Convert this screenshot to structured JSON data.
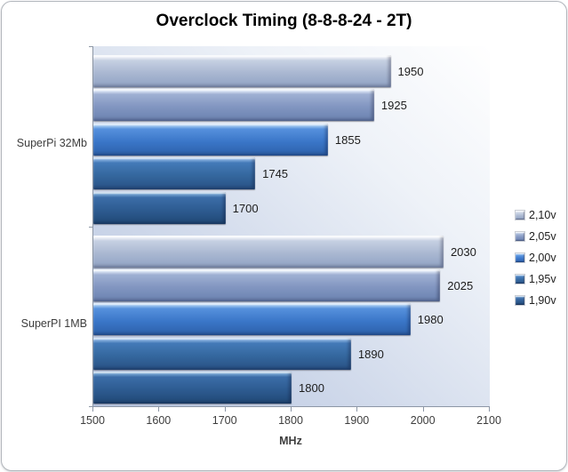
{
  "chart_data": {
    "type": "bar",
    "orientation": "horizontal",
    "title": "Overclock Timing (8-8-8-24 - 2T)",
    "categories": [
      "SuperPi 32Mb",
      "SuperPI 1MB"
    ],
    "series": [
      {
        "name": "2,10v",
        "values": [
          1950,
          2030
        ]
      },
      {
        "name": "2,05v",
        "values": [
          1925,
          2025
        ]
      },
      {
        "name": "2,00v",
        "values": [
          1855,
          1980
        ]
      },
      {
        "name": "1,95v",
        "values": [
          1745,
          1890
        ]
      },
      {
        "name": "1,90v",
        "values": [
          1700,
          1800
        ]
      }
    ],
    "data_labels": [
      [
        1950,
        1925,
        1855,
        1745,
        1700
      ],
      [
        2030,
        2025,
        1980,
        1890,
        1800
      ]
    ],
    "xlabel": "MHz",
    "xlim": [
      1500,
      2100
    ],
    "xticks": [
      1500,
      1600,
      1700,
      1800,
      1900,
      2000,
      2100
    ],
    "legend_position": "right",
    "grid": false
  },
  "colors": {
    "series_gradients": {
      "2,10v": [
        "#eff2f8",
        "#c6d0e2",
        "#aab8d2",
        "#90a2c3"
      ],
      "2,05v": [
        "#dde7f6",
        "#9fb0d3",
        "#8296c1",
        "#6a82b0"
      ],
      "2,00v": [
        "#a9cdf2",
        "#5691dd",
        "#3b77c9",
        "#2c60a9"
      ],
      "1,95v": [
        "#8cb4e2",
        "#447ab8",
        "#35689f",
        "#285184"
      ],
      "1,90v": [
        "#7ca9d6",
        "#3c6da8",
        "#2e5c92",
        "#204875"
      ]
    },
    "plot_bg_bottom_left": "#b7c5e0",
    "plot_bg_top_right": "#ffffff",
    "axis_color": "#8d97a6",
    "text_color": "#3d3d3d",
    "title_color": "#000000"
  }
}
